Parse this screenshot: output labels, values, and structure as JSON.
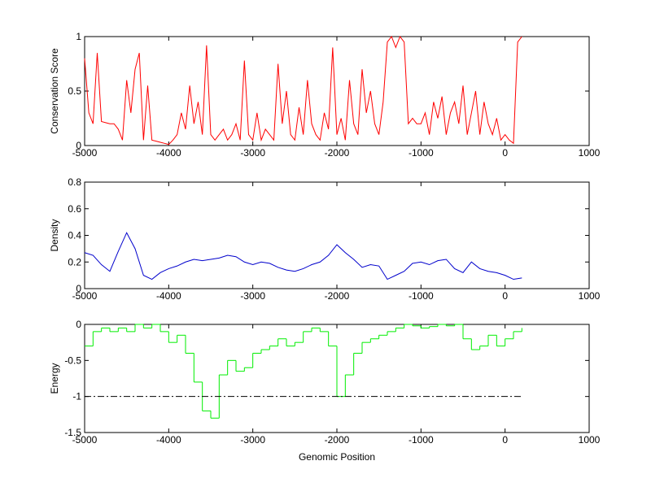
{
  "chart_data": [
    {
      "type": "line",
      "ylabel": "Conservation Score",
      "xlim": [
        -5000,
        1000
      ],
      "xticks": [
        -5000,
        -4000,
        -3000,
        -2000,
        -1000,
        0,
        1000
      ],
      "ylim": [
        0,
        1
      ],
      "yticks": [
        0,
        0.5,
        1
      ],
      "series": [
        {
          "color": "#ff0000",
          "x": [
            -5000,
            -4950,
            -4900,
            -4850,
            -4800,
            -4750,
            -4700,
            -4650,
            -4600,
            -4550,
            -4500,
            -4450,
            -4400,
            -4350,
            -4300,
            -4250,
            -4200,
            -4150,
            -4100,
            -4050,
            -4000,
            -3950,
            -3900,
            -3850,
            -3800,
            -3750,
            -3700,
            -3650,
            -3600,
            -3550,
            -3500,
            -3450,
            -3400,
            -3350,
            -3300,
            -3250,
            -3200,
            -3150,
            -3100,
            -3050,
            -3000,
            -2950,
            -2900,
            -2850,
            -2800,
            -2750,
            -2700,
            -2650,
            -2600,
            -2550,
            -2500,
            -2450,
            -2400,
            -2350,
            -2300,
            -2250,
            -2200,
            -2150,
            -2100,
            -2050,
            -2000,
            -1950,
            -1900,
            -1850,
            -1800,
            -1750,
            -1700,
            -1650,
            -1600,
            -1550,
            -1500,
            -1450,
            -1400,
            -1350,
            -1300,
            -1250,
            -1200,
            -1150,
            -1100,
            -1050,
            -1000,
            -950,
            -900,
            -850,
            -800,
            -750,
            -700,
            -650,
            -600,
            -550,
            -500,
            -450,
            -400,
            -350,
            -300,
            -250,
            -200,
            -150,
            -100,
            -50,
            0,
            50,
            100,
            150,
            200
          ],
          "values": [
            0.8,
            0.3,
            0.2,
            0.85,
            0.22,
            0.21,
            0.2,
            0.2,
            0.15,
            0.05,
            0.6,
            0.3,
            0.7,
            0.85,
            0.05,
            0.55,
            0.05,
            0.04,
            0.03,
            0.02,
            0.01,
            0.05,
            0.1,
            0.3,
            0.15,
            0.55,
            0.2,
            0.4,
            0.1,
            0.92,
            0.1,
            0.05,
            0.1,
            0.15,
            0.05,
            0.1,
            0.2,
            0.05,
            0.78,
            0.1,
            0.05,
            0.3,
            0.05,
            0.15,
            0.1,
            0.05,
            0.75,
            0.2,
            0.5,
            0.1,
            0.05,
            0.35,
            0.1,
            0.6,
            0.2,
            0.1,
            0.05,
            0.3,
            0.15,
            0.9,
            0.1,
            0.25,
            0.05,
            0.6,
            0.2,
            0.1,
            0.7,
            0.3,
            0.5,
            0.2,
            0.1,
            0.4,
            0.95,
            1,
            0.9,
            1,
            0.95,
            0.2,
            0.25,
            0.2,
            0.2,
            0.3,
            0.1,
            0.4,
            0.25,
            0.45,
            0.1,
            0.3,
            0.4,
            0.2,
            0.55,
            0.1,
            0.3,
            0.5,
            0.1,
            0.4,
            0.2,
            0.1,
            0.25,
            0.05,
            0.1,
            0.05,
            0.02,
            0.95,
            1
          ]
        }
      ]
    },
    {
      "type": "line",
      "ylabel": "Density",
      "xlim": [
        -5000,
        1000
      ],
      "xticks": [
        -5000,
        -4000,
        -3000,
        -2000,
        -1000,
        0,
        1000
      ],
      "ylim": [
        0,
        0.8
      ],
      "yticks": [
        0,
        0.2,
        0.4,
        0.6,
        0.8
      ],
      "series": [
        {
          "color": "#0000cc",
          "x": [
            -5000,
            -4900,
            -4800,
            -4700,
            -4600,
            -4500,
            -4400,
            -4300,
            -4200,
            -4100,
            -4000,
            -3900,
            -3800,
            -3700,
            -3600,
            -3500,
            -3400,
            -3300,
            -3200,
            -3100,
            -3000,
            -2900,
            -2800,
            -2700,
            -2600,
            -2500,
            -2400,
            -2300,
            -2200,
            -2100,
            -2000,
            -1900,
            -1800,
            -1700,
            -1600,
            -1500,
            -1400,
            -1300,
            -1200,
            -1100,
            -1000,
            -900,
            -800,
            -700,
            -600,
            -500,
            -400,
            -300,
            -200,
            -100,
            0,
            100,
            200
          ],
          "values": [
            0.27,
            0.25,
            0.18,
            0.13,
            0.28,
            0.42,
            0.3,
            0.1,
            0.07,
            0.12,
            0.15,
            0.17,
            0.2,
            0.22,
            0.21,
            0.22,
            0.23,
            0.25,
            0.24,
            0.2,
            0.18,
            0.2,
            0.19,
            0.16,
            0.14,
            0.13,
            0.15,
            0.18,
            0.2,
            0.25,
            0.33,
            0.27,
            0.22,
            0.16,
            0.18,
            0.17,
            0.07,
            0.1,
            0.13,
            0.19,
            0.2,
            0.18,
            0.21,
            0.22,
            0.15,
            0.12,
            0.2,
            0.15,
            0.13,
            0.12,
            0.1,
            0.07,
            0.08
          ]
        }
      ]
    },
    {
      "type": "stairs",
      "ylabel": "Energy",
      "xlabel": "Genomic Position",
      "xlim": [
        -5000,
        1000
      ],
      "xticks": [
        -5000,
        -4000,
        -3000,
        -2000,
        -1000,
        0,
        1000
      ],
      "ylim": [
        -1.5,
        0
      ],
      "yticks": [
        -1.5,
        -1,
        -0.5,
        0
      ],
      "series": [
        {
          "color": "#00ee00",
          "x": [
            -5000,
            -4900,
            -4800,
            -4700,
            -4600,
            -4500,
            -4400,
            -4300,
            -4200,
            -4100,
            -4000,
            -3900,
            -3800,
            -3700,
            -3600,
            -3500,
            -3400,
            -3300,
            -3200,
            -3100,
            -3000,
            -2900,
            -2800,
            -2700,
            -2600,
            -2500,
            -2400,
            -2300,
            -2200,
            -2100,
            -2000,
            -1900,
            -1800,
            -1700,
            -1600,
            -1500,
            -1400,
            -1300,
            -1200,
            -1100,
            -1000,
            -900,
            -800,
            -700,
            -600,
            -500,
            -400,
            -300,
            -200,
            -100,
            0,
            100,
            200
          ],
          "values": [
            -0.3,
            -0.1,
            -0.05,
            -0.1,
            -0.05,
            -0.1,
            0,
            -0.05,
            0,
            -0.1,
            -0.25,
            -0.15,
            -0.4,
            -0.8,
            -1.2,
            -1.3,
            -0.7,
            -0.5,
            -0.65,
            -0.6,
            -0.4,
            -0.35,
            -0.3,
            -0.2,
            -0.3,
            -0.25,
            -0.1,
            -0.05,
            -0.1,
            -0.3,
            -1,
            -0.7,
            -0.4,
            -0.25,
            -0.2,
            -0.15,
            -0.1,
            -0.05,
            0,
            -0.02,
            -0.05,
            -0.03,
            0,
            -0.02,
            0,
            -0.2,
            -0.35,
            -0.3,
            -0.15,
            -0.3,
            -0.2,
            -0.1,
            -0.05
          ]
        },
        {
          "color": "#000000",
          "style": "dashdot",
          "x": [
            -5000,
            200
          ],
          "values": [
            -1,
            -1
          ]
        }
      ]
    }
  ]
}
